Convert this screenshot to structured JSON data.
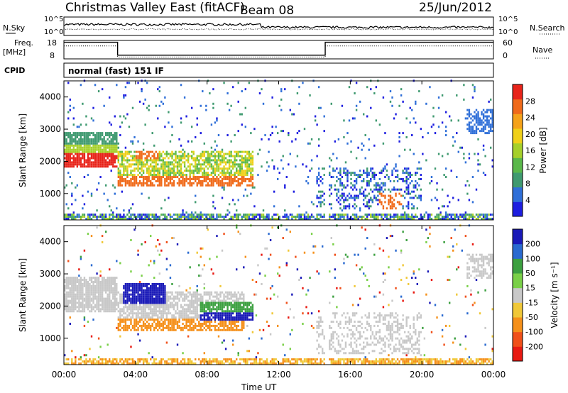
{
  "header": {
    "title": "Christmas Valley East (fitACF)",
    "beam": "Beam 08",
    "date": "25/Jun/2012"
  },
  "panel_labels": {
    "nsky": "N.Sky",
    "nsearch": "N.Search",
    "freq": "Freq.",
    "freq_unit": "[MHz]",
    "nave": "Nave",
    "cpid": "CPID",
    "cpid_value": "normal (fast) 151 IF"
  },
  "colors": {
    "scale": [
      "#1e1ee0",
      "#2f6fd8",
      "#3f9a70",
      "#5ab84a",
      "#a6d02a",
      "#f0d018",
      "#f5a21a",
      "#f06a1a",
      "#e8241a"
    ],
    "velocity_scale": [
      "#e81a12",
      "#f0501a",
      "#f5901a",
      "#f0c838",
      "#c8c8c8",
      "#7ad048",
      "#3ca040",
      "#2a6ad0",
      "#1a1ab8"
    ]
  },
  "chart_data": [
    {
      "type": "line",
      "name": "N.Sky / N.Search",
      "left_ticks": [
        "10^5",
        "10^0"
      ],
      "right_ticks": [
        "10^5",
        "10^0"
      ],
      "x_range_hours": [
        0,
        24
      ]
    },
    {
      "type": "line",
      "name": "Freq / Nave",
      "left_ticks": [
        "18",
        "8"
      ],
      "right_ticks": [
        "60",
        "0"
      ],
      "x": [
        0,
        3,
        3,
        14.6,
        14.6,
        24
      ],
      "freq_mhz": [
        17,
        17,
        10,
        10,
        17,
        17
      ]
    },
    {
      "type": "heatmap",
      "ylabel": "Slant Range [km]",
      "yticks": [
        "4000",
        "3000",
        "2000",
        "1000"
      ],
      "ylim": [
        180,
        4500
      ],
      "colorbar_label": "Power [dB]",
      "colorbar_ticks": [
        "28",
        "24",
        "20",
        "16",
        "12",
        "8",
        "4"
      ],
      "clim": [
        0,
        30
      ]
    },
    {
      "type": "heatmap",
      "ylabel": "Slant Range [km]",
      "yticks": [
        "4000",
        "3000",
        "2000",
        "1000"
      ],
      "ylim": [
        180,
        4500
      ],
      "colorbar_label": "Velocity [m s⁻¹]",
      "colorbar_ticks": [
        "200",
        "100",
        "50",
        "15",
        "-15",
        "-50",
        "-100",
        "-200"
      ]
    }
  ],
  "x_axis": {
    "ticks": [
      "00:00",
      "04:00",
      "08:00",
      "12:00",
      "16:00",
      "20:00",
      "00:00"
    ],
    "label": "Time UT"
  }
}
